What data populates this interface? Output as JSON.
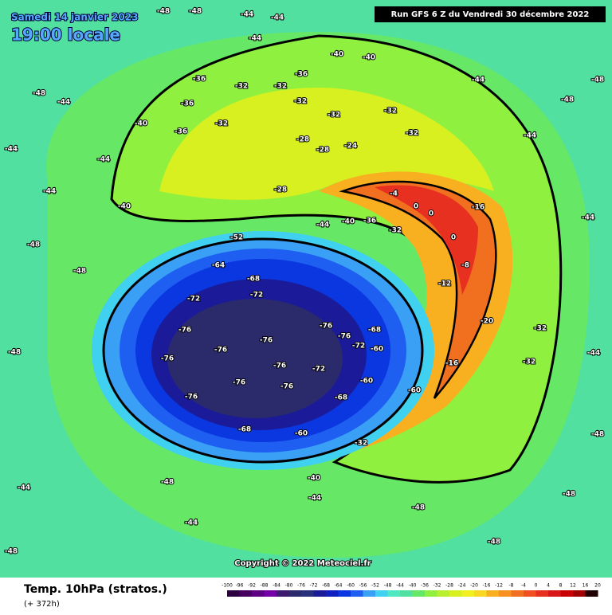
{
  "header": {
    "date": "Samedi 14 janvier 2023",
    "time": "19:00 locale",
    "run": "Run GFS 6 Z du Vendredi 30 décembre 2022"
  },
  "map": {
    "contour_labels": [
      "-48",
      "-48",
      "-44",
      "-44",
      "-44",
      "-40",
      "-40",
      "-36",
      "-36",
      "-32",
      "-32",
      "-32",
      "-32",
      "-32",
      "-32",
      "-40",
      "-36",
      "-36",
      "-32",
      "-28",
      "-28",
      "-24",
      "-28",
      "-40",
      "-44",
      "-40",
      "-36",
      "-32",
      "-4",
      "0",
      "0",
      "0",
      "-16",
      "-8",
      "-12",
      "-20",
      "-16",
      "-32",
      "-32",
      "-44",
      "-44",
      "-52",
      "-64",
      "-68",
      "-72",
      "-72",
      "-76",
      "-76",
      "-76",
      "-76",
      "-76",
      "-68",
      "-72",
      "-76",
      "-72",
      "-68",
      "-60",
      "-68",
      "-60",
      "-32",
      "-76",
      "-44",
      "-48",
      "-44",
      "-44",
      "-48",
      "-48",
      "-44",
      "-48",
      "-48",
      "-44",
      "-40",
      "-44",
      "-48",
      "-48",
      "-48",
      "-48",
      "-48",
      "-48",
      "-44",
      "-44",
      "-44",
      "-48",
      "-76",
      "-76",
      "-76",
      "-60",
      "-60"
    ]
  },
  "footer": {
    "title": "Temp. 10hPa (stratos.)",
    "lead_time": "(+ 372h)",
    "copyright": "Copyright © 2022 Meteociel.fr"
  },
  "legend": {
    "ticks": [
      -100,
      -96,
      -92,
      -88,
      -84,
      -80,
      -76,
      -72,
      -68,
      -64,
      -60,
      -56,
      -52,
      -48,
      -44,
      -40,
      -36,
      -32,
      -28,
      -24,
      -20,
      -16,
      -12,
      -8,
      -4,
      0,
      4,
      8,
      12,
      16,
      20
    ],
    "colors": [
      "#2d0040",
      "#460060",
      "#5e0082",
      "#7400a8",
      "#3c1a6e",
      "#2b2b6b",
      "#27307a",
      "#1b1b9a",
      "#0f1fc0",
      "#0a37e0",
      "#1e5ef0",
      "#3aa0f5",
      "#40d0f0",
      "#50e8c0",
      "#52e0a0",
      "#66e866",
      "#90f040",
      "#b8f030",
      "#d8f020",
      "#f0f020",
      "#f8d820",
      "#f8b020",
      "#f89020",
      "#f07020",
      "#f05020",
      "#e83020",
      "#d81818",
      "#c80000",
      "#a00000",
      "#200000"
    ]
  }
}
